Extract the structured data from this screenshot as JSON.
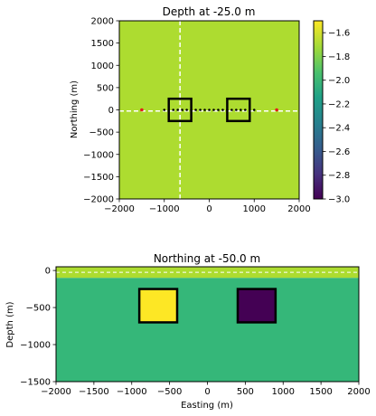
{
  "chart_data": [
    {
      "type": "heatmap",
      "title": "Depth at -25.0 m",
      "xlabel": "",
      "ylabel": "Northing (m)",
      "xlim": [
        -2000,
        2000
      ],
      "ylim": [
        -2000,
        2000
      ],
      "xticks": [
        -2000,
        -1000,
        0,
        1000,
        2000
      ],
      "yticks": [
        -2000,
        -1500,
        -1000,
        -500,
        0,
        500,
        1000,
        1500,
        2000
      ],
      "background_value": -1.7,
      "background_color": "#addc30",
      "crosshair": {
        "x": -650,
        "y": -25,
        "color": "#ffffff",
        "style": "dashed"
      },
      "boxes": [
        {
          "x": [
            -900,
            -400
          ],
          "y": [
            -250,
            250
          ]
        },
        {
          "x": [
            400,
            900
          ],
          "y": [
            -250,
            250
          ]
        }
      ],
      "black_points_x": [
        -1000,
        -900,
        -800,
        -700,
        -600,
        -500,
        -400,
        -300,
        -200,
        -100,
        0,
        100,
        200,
        300,
        400,
        500,
        600,
        700,
        800,
        900,
        1000
      ],
      "black_points_y": 0,
      "red_points": [
        {
          "x": -1500,
          "y": 0
        },
        {
          "x": 1500,
          "y": 0
        }
      ]
    },
    {
      "type": "colorbar",
      "range": [
        -3.0,
        -1.5
      ],
      "ticks": [
        -3.0,
        -2.8,
        -2.6,
        -2.4,
        -2.2,
        -2.0,
        -1.8,
        -1.6
      ],
      "tick_labels": [
        "−3.0",
        "−2.8",
        "−2.6",
        "−2.4",
        "−2.2",
        "−2.0",
        "−1.8",
        "−1.6"
      ],
      "colormap": "viridis"
    },
    {
      "type": "heatmap",
      "title": "Northing at -50.0 m",
      "xlabel": "Easting (m)",
      "ylabel": "Depth (m)",
      "xlim": [
        -2000,
        2000
      ],
      "ylim": [
        -1500,
        50
      ],
      "xticks": [
        -2000,
        -1500,
        -1000,
        -500,
        0,
        500,
        1000,
        1500,
        2000
      ],
      "yticks": [
        0,
        -500,
        -1000,
        -1500
      ],
      "layers": [
        {
          "top": 50,
          "bottom": -100,
          "value": -1.7,
          "color": "#addc30"
        },
        {
          "top": -100,
          "bottom": -1500,
          "value": -2.1,
          "color": "#35b779"
        }
      ],
      "crosshair_y": -25,
      "blocks": [
        {
          "x": [
            -900,
            -400
          ],
          "y": [
            -700,
            -250
          ],
          "value": -1.5,
          "color": "#fde725"
        },
        {
          "x": [
            400,
            900
          ],
          "y": [
            -700,
            -250
          ],
          "value": -3.0,
          "color": "#440154"
        }
      ]
    }
  ]
}
